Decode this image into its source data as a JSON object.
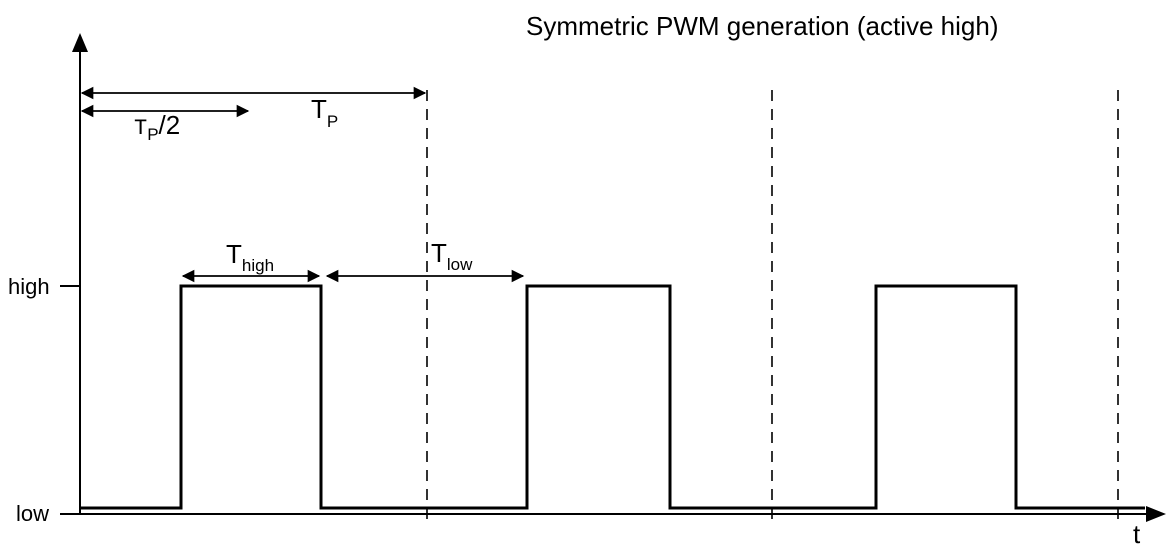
{
  "title": "Symmetric PWM generation (active high)",
  "y_axis": {
    "levels": {
      "high": "high",
      "low": "low"
    }
  },
  "x_axis": {
    "label": "t"
  },
  "annotations": {
    "half_period": {
      "main": "T",
      "sub": "P",
      "suffix": "/2"
    },
    "period": {
      "main": "T",
      "sub": "P"
    },
    "t_high": {
      "main": "T",
      "sub": "high"
    },
    "t_low": {
      "main": "T",
      "sub": "low"
    }
  },
  "waveform": {
    "signal": "symmetric PWM, active high",
    "pulses_shown": 3,
    "period_markers_shown": 4
  },
  "colors": {
    "line": "#000000",
    "background": "#ffffff"
  }
}
